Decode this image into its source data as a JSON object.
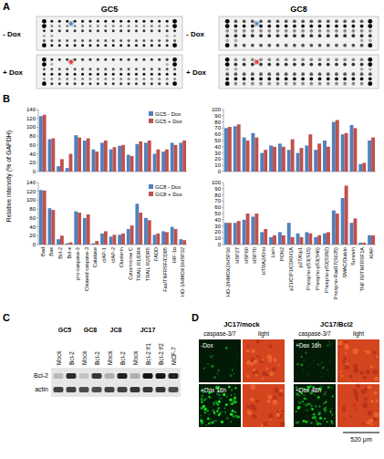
{
  "panels": {
    "A": {
      "label": "A",
      "arrays": [
        {
          "title": "GC5",
          "rows": [
            "- Dox",
            "+ Dox"
          ]
        },
        {
          "title": "GC8",
          "rows": [
            "- Dox",
            "+ Dox"
          ]
        }
      ]
    },
    "B": {
      "label": "B",
      "y_label": "Relative intensity (% of GAPDH)"
    },
    "C": {
      "label": "C",
      "groups": [
        {
          "name": "GC5",
          "lanes": [
            "Mock",
            "Bcl-2"
          ]
        },
        {
          "name": "GC8",
          "lanes": [
            "Mock",
            "Bcl-2"
          ]
        },
        {
          "name": "JC8",
          "lanes": [
            "Mock",
            "Bcl-2"
          ]
        },
        {
          "name": "JC17",
          "lanes": [
            "Mock",
            "Bcl-2 #1",
            "Bcl-2 #2"
          ]
        }
      ],
      "extra_lanes": [
        "MCF-7"
      ],
      "rows": [
        "Bcl-2",
        "actin"
      ]
    },
    "D": {
      "label": "D",
      "groups": [
        {
          "name": "JC17/mock",
          "columns": [
            "caspase-3/7",
            "light"
          ],
          "conditions": [
            "-Dox",
            "+Dox 16h"
          ]
        },
        {
          "name": "JC17/Bcl2",
          "columns": [
            "caspase-3/7",
            "light"
          ],
          "conditions": [
            "+Dox 16h",
            "+Dox 48h"
          ]
        }
      ],
      "scale_bar": "520 μm"
    }
  },
  "chart_data": [
    {
      "type": "bar",
      "categories": [
        "Bad",
        "Bax",
        "Bcl-2",
        "Bcl-x",
        "pro-caspase-3",
        "Cleaved caspase-3",
        "Catalase",
        "cIAP-1",
        "cIAP-2",
        "Clusterin",
        "Cytochrome C",
        "TRAIL R1/DR4",
        "TRAIL R2/DR5",
        "FADD",
        "Fas/TNFRSF/CD95",
        "HIF-1α",
        "HO-1/HMOX1/HSP32"
      ],
      "series": [
        {
          "name": "GC5 - Dox",
          "color": "#4f81bd",
          "values": [
            125,
            73,
            12,
            8,
            82,
            70,
            50,
            65,
            50,
            58,
            38,
            62,
            65,
            40,
            45,
            65,
            65
          ]
        },
        {
          "name": "GC5 + Dox",
          "color": "#c0504d",
          "values": [
            128,
            75,
            28,
            40,
            77,
            75,
            45,
            70,
            55,
            60,
            35,
            68,
            70,
            50,
            50,
            60,
            70
          ]
        }
      ],
      "ylim": [
        0,
        140
      ],
      "yticks": [
        0,
        20,
        40,
        60,
        80,
        100,
        120,
        140
      ],
      "legend": "top-right",
      "tick_labels": "y"
    },
    {
      "type": "bar",
      "categories": [
        "HO-2/HMOX2/HSP36",
        "HSP27",
        "HSP60",
        "HSP70",
        "HTRA2/Omi",
        "Livin",
        "PON2",
        "p21/CIP1/CDKN1A",
        "p27/Kip1",
        "Phospho-p53(S15)",
        "Phospho-p53(S46)",
        "Phospho-p53(S392)",
        "Phospho-Rad17(S635)",
        "SMAC/Diablo",
        "Survivin",
        "TNF RI/TNFRSF1A",
        "XIAP"
      ],
      "series": [
        {
          "name": "GC5 - Dox",
          "color": "#4f81bd",
          "values": [
            70,
            73,
            55,
            62,
            30,
            42,
            45,
            35,
            30,
            42,
            35,
            50,
            80,
            60,
            75,
            12,
            50
          ]
        },
        {
          "name": "GC5 + Dox",
          "color": "#c0504d",
          "values": [
            72,
            76,
            50,
            55,
            35,
            40,
            40,
            52,
            38,
            60,
            45,
            40,
            83,
            62,
            70,
            14,
            55
          ]
        }
      ],
      "ylim": [
        0,
        100
      ],
      "yticks": [
        0,
        10,
        20,
        30,
        40,
        50,
        60,
        70,
        80,
        90,
        100
      ],
      "tick_labels": "y"
    },
    {
      "type": "bar",
      "categories": [
        "Bad",
        "Bax",
        "Bcl-2",
        "Bcl-x",
        "pro-caspase-3",
        "Cleaved caspase-3",
        "Catalase",
        "cIAP-1",
        "cIAP-2",
        "Clusterin",
        "Cytochrome C",
        "TRAIL R1/DR4",
        "TRAIL R2/DR5",
        "FADD",
        "Fas/TNFRSF/CD95",
        "HIF-1α",
        "HO-1/HMOX1/HSP32"
      ],
      "series": [
        {
          "name": "GC8 - Dox",
          "color": "#4f81bd",
          "values": [
            123,
            82,
            12,
            3,
            75,
            60,
            3,
            25,
            18,
            22,
            35,
            92,
            60,
            22,
            30,
            40,
            12
          ]
        },
        {
          "name": "GC8 + Dox",
          "color": "#c0504d",
          "values": [
            122,
            78,
            20,
            5,
            72,
            68,
            8,
            30,
            22,
            25,
            43,
            72,
            55,
            25,
            28,
            35,
            10
          ]
        }
      ],
      "ylim": [
        0,
        140
      ],
      "yticks": [
        0,
        20,
        40,
        60,
        80,
        100,
        120,
        140
      ],
      "legend": "top-right"
    },
    {
      "type": "bar",
      "categories": [
        "HO-2/HMOX2/HSP36",
        "HSP27",
        "HSP60",
        "HSP70",
        "HTRA2/Omi",
        "Livin",
        "PON2",
        "p21/CIP1/CDKN1A",
        "p27/Kip1",
        "Phospho-p53(S15)",
        "Phospho-p53(S46)",
        "Phospho-p53(S392)",
        "Phospho-Rad17(S635)",
        "SMAC/Diablo",
        "Survivin",
        "TNF RI/TNFRSF1A",
        "XIAP"
      ],
      "series": [
        {
          "name": "GC8 - Dox",
          "color": "#4f81bd",
          "values": [
            35,
            35,
            40,
            45,
            20,
            12,
            20,
            35,
            18,
            20,
            12,
            18,
            55,
            75,
            35,
            3,
            15
          ]
        },
        {
          "name": "GC8 + Dox",
          "color": "#c0504d",
          "values": [
            35,
            38,
            50,
            50,
            25,
            15,
            15,
            12,
            12,
            18,
            15,
            20,
            50,
            95,
            42,
            3,
            15
          ]
        }
      ],
      "ylim": [
        0,
        100
      ],
      "yticks": [
        0,
        10,
        20,
        30,
        40,
        50,
        60,
        70,
        80,
        90,
        100
      ]
    }
  ]
}
